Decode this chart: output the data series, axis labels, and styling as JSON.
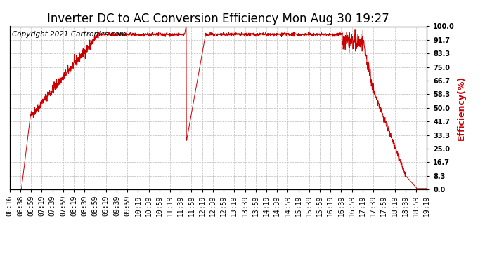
{
  "title": "Inverter DC to AC Conversion Efficiency Mon Aug 30 19:27",
  "ylabel": "Efficiency(%)",
  "ylabel_color": "#cc0000",
  "line_color": "#cc0000",
  "background_color": "#ffffff",
  "grid_color": "#bbbbbb",
  "copyright_text": "Copyright 2021 Cartronics.com",
  "ylim": [
    0.0,
    100.0
  ],
  "yticks": [
    0.0,
    8.3,
    16.7,
    25.0,
    33.3,
    41.7,
    50.0,
    58.3,
    66.7,
    75.0,
    83.3,
    91.7,
    100.0
  ],
  "xtick_labels": [
    "06:16",
    "06:38",
    "06:59",
    "07:19",
    "07:39",
    "07:59",
    "08:19",
    "08:39",
    "08:59",
    "09:19",
    "09:39",
    "09:59",
    "10:19",
    "10:39",
    "10:59",
    "11:19",
    "11:39",
    "11:59",
    "12:19",
    "12:39",
    "12:59",
    "13:19",
    "13:39",
    "13:59",
    "14:19",
    "14:39",
    "14:59",
    "15:19",
    "15:39",
    "15:59",
    "16:19",
    "16:39",
    "16:59",
    "17:19",
    "17:39",
    "17:59",
    "18:19",
    "18:39",
    "18:59",
    "19:19"
  ],
  "title_fontsize": 12,
  "tick_fontsize": 7,
  "ylabel_fontsize": 9,
  "copyright_fontsize": 7.5,
  "seed": 42
}
